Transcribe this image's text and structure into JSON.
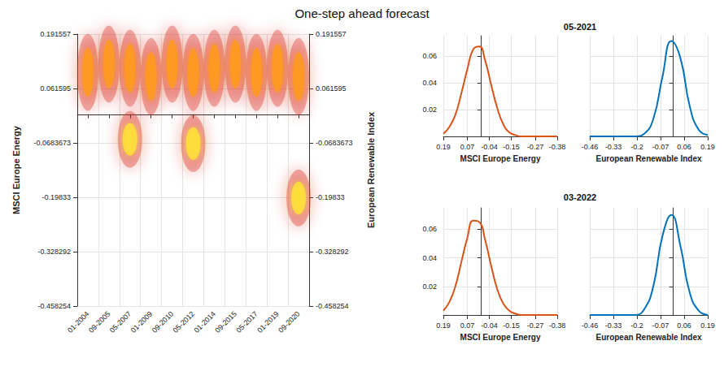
{
  "chart_data": [
    {
      "type": "scatter",
      "title": "One-step ahead forecast",
      "x": [
        "01-2004",
        "09-2005",
        "05-2007",
        "01-2009",
        "09-2010",
        "05-2012",
        "01-2014",
        "09-2015",
        "05-2017",
        "01-2019",
        "09-2020"
      ],
      "ylabel": "MSCI Europe Energy",
      "y2label": "European Renewable Index",
      "ylim": [
        -0.458254,
        0.191557
      ],
      "yticks": [
        -0.458254,
        -0.328292,
        -0.19833,
        -0.0683673,
        0.061595,
        0.191557
      ],
      "y2lim": [
        -0.458254,
        0.191557
      ],
      "y2ticks": [
        -0.458254,
        -0.328292,
        -0.19833,
        -0.0683673,
        0.061595,
        0.191557
      ],
      "grid": true,
      "series": [
        {
          "color": "#ff9a1f",
          "values": [
            0.1,
            0.12,
            0.11,
            0.09,
            0.12,
            0.1,
            0.11,
            0.12,
            0.1,
            0.11,
            0.09
          ]
        },
        {
          "color": "#ffe03a",
          "values": [
            null,
            null,
            -0.06,
            null,
            null,
            -0.07,
            null,
            null,
            null,
            null,
            -0.2
          ]
        }
      ]
    },
    {
      "type": "line",
      "title": "05-2021",
      "ylim": [
        0,
        0.075
      ],
      "yticks": [
        0.02,
        0.04,
        0.06
      ],
      "grid": true,
      "series": [
        {
          "name": "MSCI Europe Energy",
          "color": "#d95319",
          "xlim": [
            -0.38,
            0.19
          ],
          "xticks": [
            0.19,
            0.07,
            -0.04,
            -0.15,
            -0.27,
            -0.38
          ],
          "x": [
            0.19,
            0.16,
            0.13,
            0.1,
            0.07,
            0.04,
            0.01,
            -0.02,
            -0.05,
            -0.08,
            -0.11,
            -0.14,
            -0.17,
            -0.2,
            -0.23,
            -0.26,
            -0.29,
            -0.32,
            -0.35,
            -0.38
          ],
          "values": [
            0.002,
            0.007,
            0.016,
            0.032,
            0.05,
            0.065,
            0.067,
            0.056,
            0.038,
            0.021,
            0.009,
            0.003,
            0.001,
            0,
            0,
            0,
            0,
            0,
            0,
            0
          ]
        },
        {
          "name": "European Renewable Index",
          "color": "#0072bd",
          "xlim": [
            -0.46,
            0.19
          ],
          "xticks": [
            -0.46,
            -0.33,
            -0.2,
            -0.07,
            0.06,
            0.19
          ],
          "x": [
            -0.46,
            -0.41,
            -0.36,
            -0.31,
            -0.26,
            -0.21,
            -0.16,
            -0.11,
            -0.06,
            -0.01,
            0.04,
            0.09,
            0.14,
            0.19
          ],
          "values": [
            0,
            0,
            0,
            0,
            0,
            0,
            0.002,
            0.013,
            0.044,
            0.071,
            0.058,
            0.023,
            0.005,
            0.001
          ]
        }
      ]
    },
    {
      "type": "line",
      "title": "03-2022",
      "ylim": [
        0,
        0.075
      ],
      "yticks": [
        0.02,
        0.04,
        0.06
      ],
      "grid": true,
      "series": [
        {
          "name": "MSCI Europe Energy",
          "color": "#d95319",
          "xlim": [
            -0.38,
            0.19
          ],
          "xticks": [
            0.19,
            0.07,
            -0.04,
            -0.15,
            -0.27,
            -0.38
          ],
          "x": [
            0.19,
            0.16,
            0.13,
            0.1,
            0.07,
            0.04,
            0.01,
            -0.02,
            -0.05,
            -0.08,
            -0.11,
            -0.14,
            -0.17,
            -0.2,
            -0.23,
            -0.26,
            -0.29,
            -0.32,
            -0.35,
            -0.38
          ],
          "values": [
            0.003,
            0.009,
            0.02,
            0.037,
            0.054,
            0.066,
            0.065,
            0.052,
            0.034,
            0.018,
            0.008,
            0.003,
            0.001,
            0,
            0,
            0,
            0,
            0,
            0,
            0
          ]
        },
        {
          "name": "European Renewable Index",
          "color": "#0072bd",
          "xlim": [
            -0.46,
            0.19
          ],
          "xticks": [
            -0.46,
            -0.33,
            -0.2,
            -0.07,
            0.06,
            0.19
          ],
          "x": [
            -0.46,
            -0.41,
            -0.36,
            -0.31,
            -0.26,
            -0.21,
            -0.16,
            -0.11,
            -0.06,
            -0.01,
            0.04,
            0.09,
            0.14,
            0.19
          ],
          "values": [
            0,
            0,
            0,
            0,
            0,
            0,
            0.004,
            0.02,
            0.055,
            0.07,
            0.048,
            0.016,
            0.003,
            0
          ]
        }
      ]
    }
  ]
}
